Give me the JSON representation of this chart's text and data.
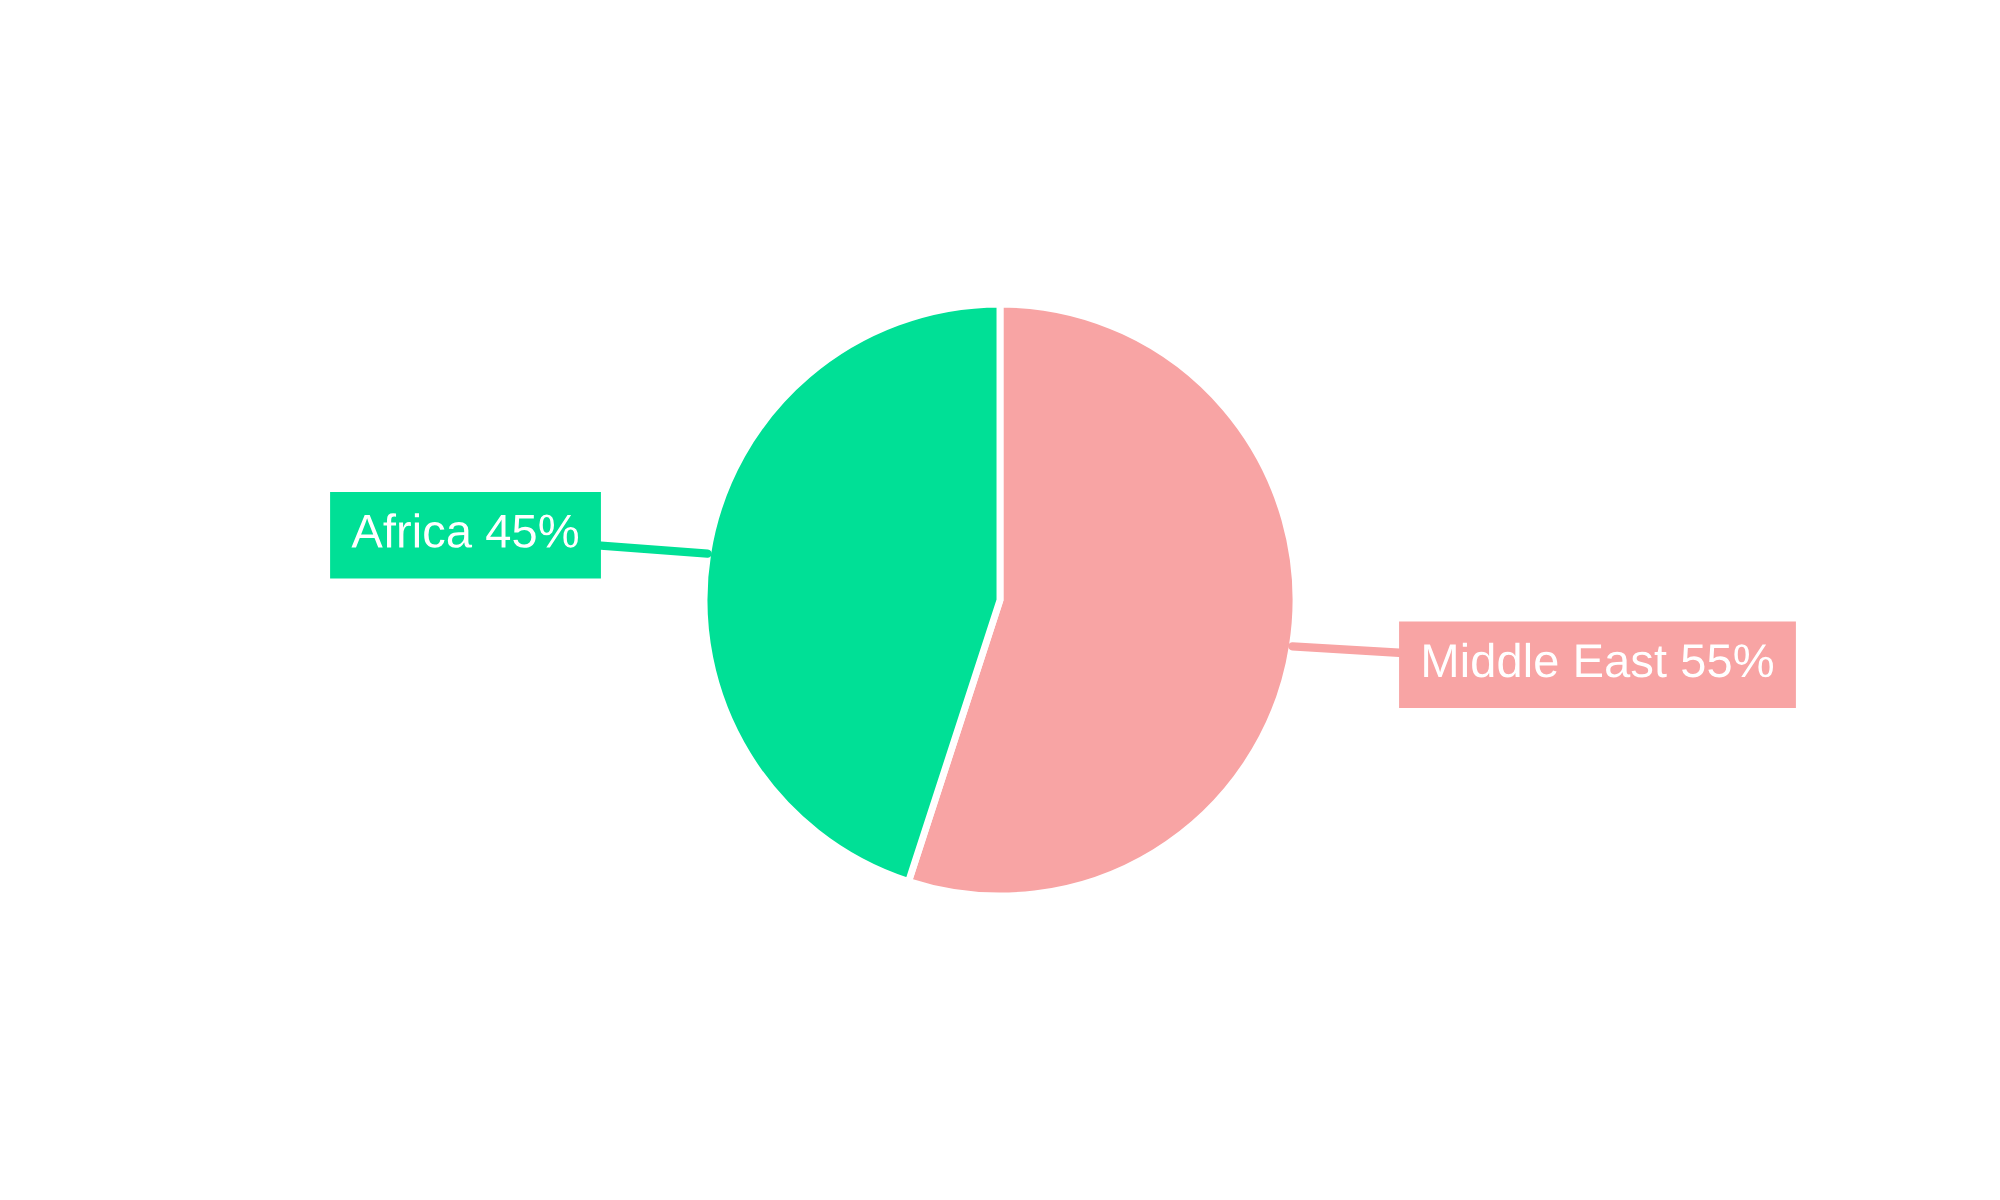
{
  "chart_data": {
    "type": "pie",
    "categories": [
      "Middle East",
      "Africa"
    ],
    "values": [
      55,
      45
    ],
    "value_labels": [
      "55%",
      "45%"
    ],
    "colors": [
      "#f8a4a4",
      "#00e096"
    ],
    "legend": false
  }
}
